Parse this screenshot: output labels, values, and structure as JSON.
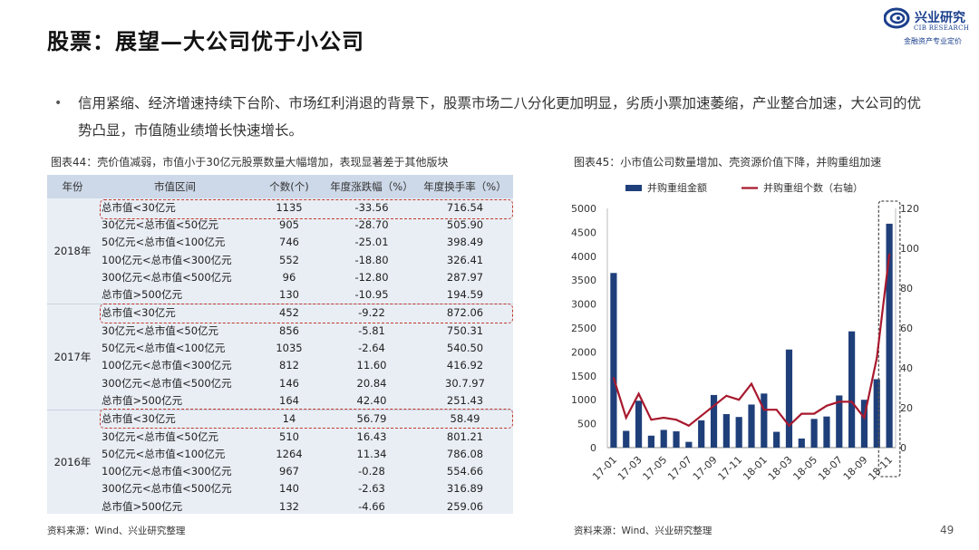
{
  "title": "股票：展望—大公司优于小公司",
  "logo": {
    "cn": "兴业研究",
    "en": "CIB RESEARCH",
    "sub": "金融资产专业定价"
  },
  "bullet": "信用紧缩、经济增速持续下台阶、市场红利消退的背景下，股票市场二八分化更加明显，劣质小票加速萎缩，产业整合加速，大公司的优势凸显，市值随业绩增长快速增长。",
  "table_caption": "图表44：壳价值减弱，市值小于30亿元股票数量大幅增加，表现显著差于其他版块",
  "chart_caption": "图表45：小市值公司数量增加、壳资源价值下降，并购重组加速",
  "source_left": "资料来源：Wind、兴业研究整理",
  "source_right": "资料来源：Wind、兴业研究整理",
  "page_number": "49",
  "table": {
    "headers": [
      "年份",
      "市值区间",
      "个数(个)",
      "年度涨跌幅（%）",
      "年度换手率（%）"
    ],
    "groups": [
      {
        "year": "2018年",
        "rows": [
          [
            "总市值<30亿元",
            "1135",
            "-33.56",
            "716.54"
          ],
          [
            "30亿元<总市值<50亿元",
            "905",
            "-28.70",
            "505.90"
          ],
          [
            "50亿元<总市值<100亿元",
            "746",
            "-25.01",
            "398.49"
          ],
          [
            "100亿元<总市值<300亿元",
            "552",
            "-18.80",
            "326.41"
          ],
          [
            "300亿元<总市值<500亿元",
            "96",
            "-12.80",
            "287.97"
          ],
          [
            "总市值>500亿元",
            "130",
            "-10.95",
            "194.59"
          ]
        ]
      },
      {
        "year": "2017年",
        "rows": [
          [
            "总市值<30亿元",
            "452",
            "-9.22",
            "872.06"
          ],
          [
            "30亿元<总市值<50亿元",
            "856",
            "-5.81",
            "750.31"
          ],
          [
            "50亿元<总市值<100亿元",
            "1035",
            "-2.64",
            "540.50"
          ],
          [
            "100亿元<总市值<300亿元",
            "812",
            "11.60",
            "416.92"
          ],
          [
            "300亿元<总市值<500亿元",
            "146",
            "20.84",
            "30.7.97"
          ],
          [
            "总市值>500亿元",
            "164",
            "42.40",
            "251.43"
          ]
        ]
      },
      {
        "year": "2016年",
        "rows": [
          [
            "总市值<30亿元",
            "14",
            "56.79",
            "58.49"
          ],
          [
            "30亿元<总市值<50亿元",
            "510",
            "16.43",
            "801.21"
          ],
          [
            "50亿元<总市值<100亿元",
            "1264",
            "11.34",
            "786.08"
          ],
          [
            "100亿元<总市值<300亿元",
            "967",
            "-0.28",
            "554.66"
          ],
          [
            "300亿元<总市值<500亿元",
            "140",
            "-2.63",
            "316.89"
          ],
          [
            "总市值>500亿元",
            "132",
            "-4.66",
            "259.06"
          ]
        ]
      }
    ]
  },
  "chart_data": {
    "type": "bar+line",
    "title": "",
    "categories": [
      "17-01",
      "17-02",
      "17-03",
      "17-04",
      "17-05",
      "17-06",
      "17-07",
      "17-08",
      "17-09",
      "17-10",
      "17-11",
      "17-12",
      "18-01",
      "18-02",
      "18-03",
      "18-04",
      "18-05",
      "18-06",
      "18-07",
      "18-08",
      "18-09",
      "18-10",
      "18-11"
    ],
    "tick_labels": [
      "17-01",
      "17-03",
      "17-05",
      "17-07",
      "17-09",
      "17-11",
      "18-01",
      "18-03",
      "18-05",
      "18-07",
      "18-09",
      "18-11"
    ],
    "series": [
      {
        "name": "并购重组金额",
        "type": "bar",
        "axis": "left",
        "color": "#1f3f7a",
        "values": [
          3650,
          350,
          980,
          250,
          370,
          340,
          120,
          570,
          1100,
          700,
          640,
          900,
          1130,
          330,
          2050,
          190,
          600,
          650,
          1090,
          2430,
          1000,
          1430,
          4680
        ]
      },
      {
        "name": "并购重组个数（右轴）",
        "type": "line",
        "axis": "right",
        "color": "#a8192e",
        "values": [
          35,
          15,
          27,
          14,
          15,
          14,
          11,
          16,
          21,
          26,
          24,
          32,
          19,
          19,
          11,
          17,
          17,
          21,
          23,
          23,
          15,
          45,
          97
        ]
      }
    ],
    "y_left": {
      "min": 0,
      "max": 5000,
      "ticks": [
        0,
        500,
        1000,
        1500,
        2000,
        2500,
        3000,
        3500,
        4000,
        4500,
        5000
      ]
    },
    "y_right": {
      "min": 0,
      "max": 120,
      "ticks": [
        0,
        20,
        40,
        60,
        80,
        100,
        120
      ]
    },
    "highlight_category": "18-11",
    "legend_position": "top"
  }
}
